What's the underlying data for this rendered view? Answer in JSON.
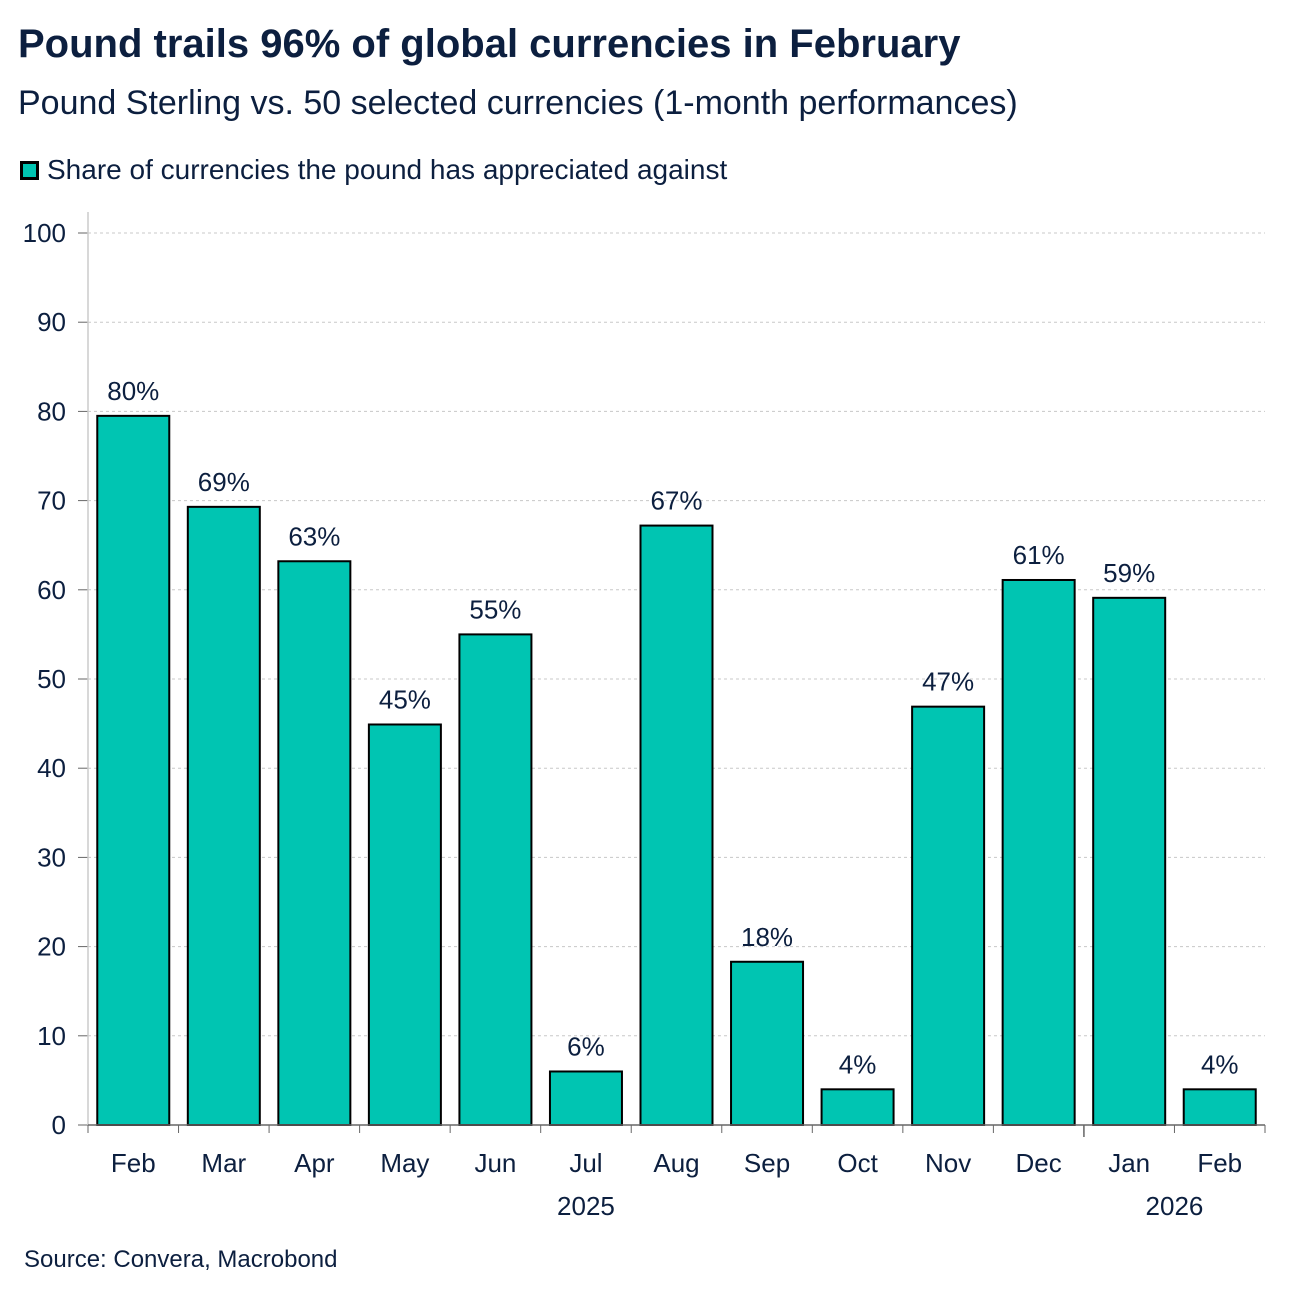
{
  "title": "Pound trails 96% of global currencies in February",
  "subtitle": "Pound Sterling vs. 50 selected currencies (1-month performances)",
  "source": "Source: Convera, Macrobond",
  "colors": {
    "bar": "#00c5b2",
    "bar_outline": "#000000",
    "text": "#0c1f3f",
    "grid": "#c8c8c8",
    "axis": "#666666"
  },
  "chart_data": {
    "type": "bar",
    "categories": [
      "Feb",
      "Mar",
      "Apr",
      "May",
      "Jun",
      "Jul",
      "Aug",
      "Sep",
      "Oct",
      "Nov",
      "Dec",
      "Jan",
      "Feb"
    ],
    "year_labels": [
      {
        "label": "2025",
        "from_index": 0,
        "to_index": 10
      },
      {
        "label": "2026",
        "from_index": 11,
        "to_index": 12
      }
    ],
    "series": [
      {
        "name": "Share of currencies the pound has appreciated against",
        "values": [
          79.5,
          69.3,
          63.2,
          44.9,
          55.0,
          6.0,
          67.2,
          18.3,
          4.0,
          46.9,
          61.1,
          59.1,
          4.0
        ],
        "data_labels": [
          "80%",
          "69%",
          "63%",
          "45%",
          "55%",
          "6%",
          "67%",
          "18%",
          "4%",
          "47%",
          "61%",
          "59%",
          "4%"
        ]
      }
    ],
    "ylim": [
      0,
      100
    ],
    "yticks": [
      0,
      10,
      20,
      30,
      40,
      50,
      60,
      70,
      80,
      90,
      100
    ],
    "xlabel": "",
    "ylabel": "",
    "grid": true,
    "legend_position": "top-left"
  }
}
